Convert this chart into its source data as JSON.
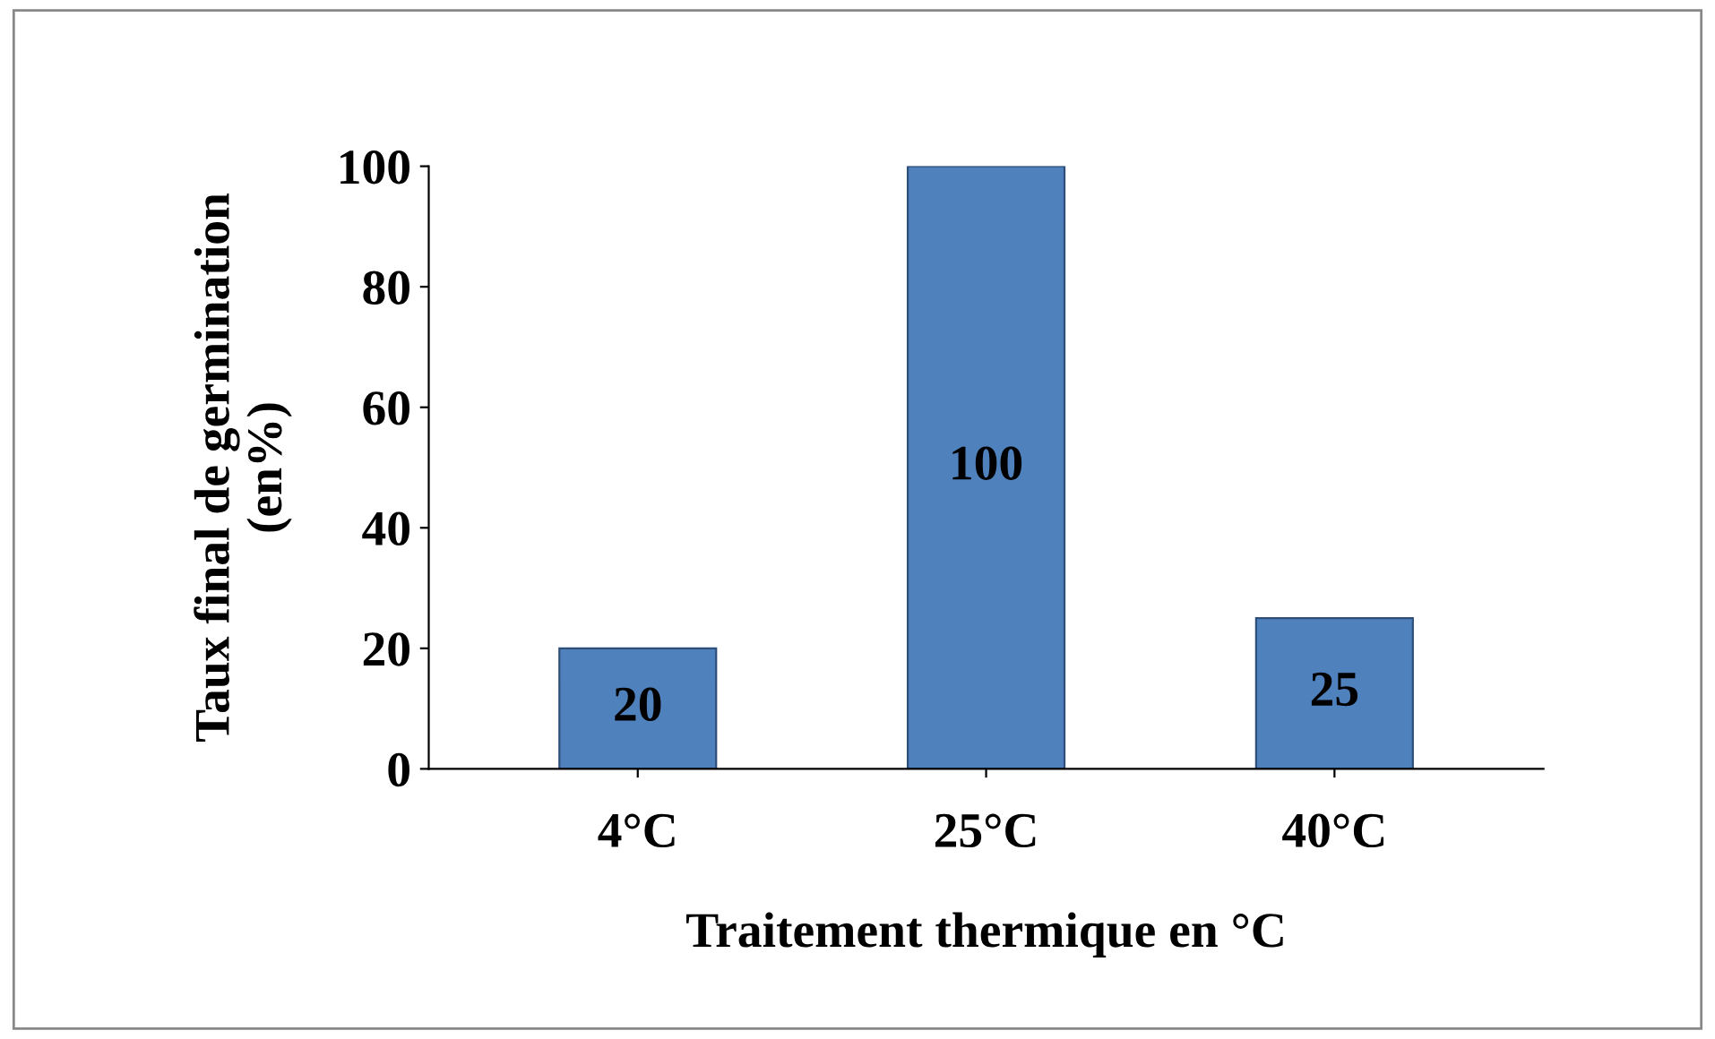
{
  "chart_data": {
    "type": "bar",
    "xlabel": "Traitement thermique en °C",
    "ylabel": "Taux final de germination\n(en%)",
    "categories": [
      "4°C",
      "25°C",
      "40°C"
    ],
    "values": [
      20,
      100,
      25
    ],
    "color": "#4f81bd",
    "ylim": [
      0,
      100
    ],
    "yticks": [
      0,
      20,
      40,
      60,
      80,
      100
    ],
    "data_labels": true,
    "grid": false
  }
}
